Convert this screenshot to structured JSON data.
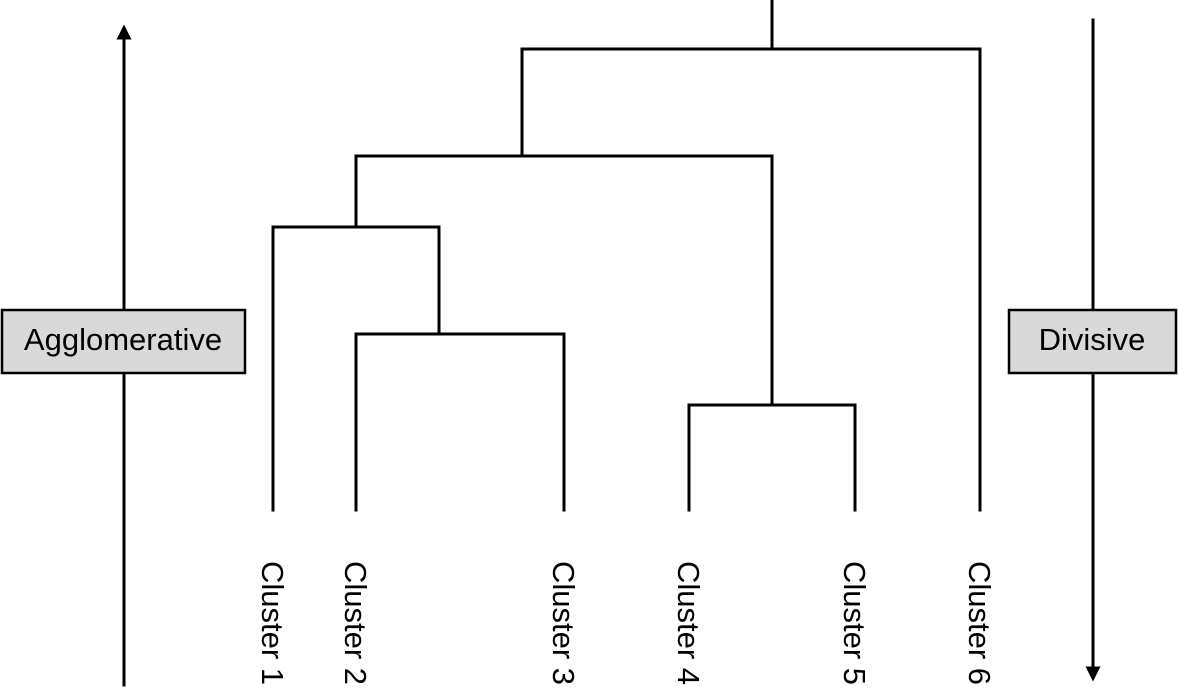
{
  "left_label": "Agglomerative",
  "right_label": "Divisive",
  "leaves": [
    "Cluster 1",
    "Cluster 2",
    "Cluster 3",
    "Cluster 4",
    "Cluster 5",
    "Cluster 6"
  ],
  "colors": {
    "line": "#000000",
    "box_fill": "#d9d9d9",
    "background": "#ffffff"
  }
}
